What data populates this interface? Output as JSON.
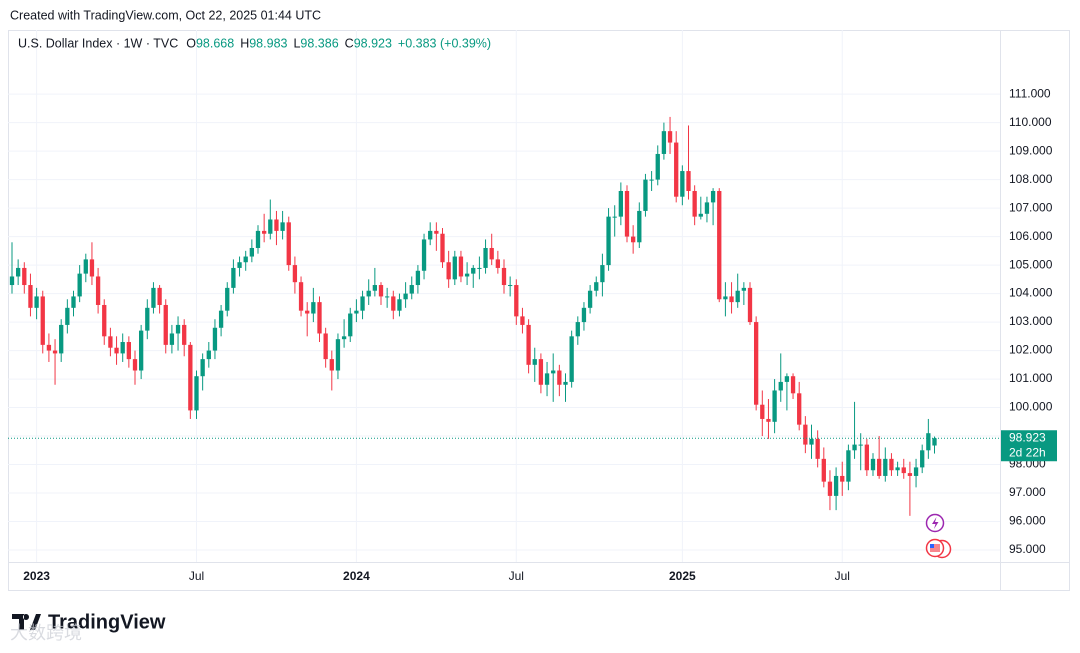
{
  "chart_data": {
    "type": "candlestick",
    "created": "Created with TradingView.com, Oct 22, 2025 01:44 UTC",
    "title": "U.S. Dollar Index · 1W · TVC",
    "ohlc_labels": [
      "O",
      "H",
      "L",
      "C"
    ],
    "change_label": "+0.383 (+0.39%)",
    "countdown": "2d 22h",
    "brand": "TradingView",
    "watermark": "大数跨境",
    "up_color": "#089981",
    "down_color": "#f23645",
    "grid": true,
    "ylim": [
      94.58,
      113.25
    ],
    "yticks": [
      {
        "value": 95,
        "label": "95.000"
      },
      {
        "value": 96,
        "label": "96.000"
      },
      {
        "value": 97,
        "label": "97.000"
      },
      {
        "value": 98,
        "label": "98.000"
      },
      {
        "value": 99,
        "label": "99.000"
      },
      {
        "value": 100,
        "label": "100.000"
      },
      {
        "value": 101,
        "label": "101.000"
      },
      {
        "value": 102,
        "label": "102.000"
      },
      {
        "value": 103,
        "label": "103.000"
      },
      {
        "value": 104,
        "label": "104.000"
      },
      {
        "value": 105,
        "label": "105.000"
      },
      {
        "value": 106,
        "label": "106.000"
      },
      {
        "value": 107,
        "label": "107.000"
      },
      {
        "value": 108,
        "label": "108.000"
      },
      {
        "value": 109,
        "label": "109.000"
      },
      {
        "value": 110,
        "label": "110.000"
      },
      {
        "value": 111,
        "label": "111.000"
      }
    ],
    "xlim": [
      -0.65,
      160.65
    ],
    "xticks": [
      {
        "value": 4,
        "label": "2023"
      },
      {
        "value": 30,
        "label": "Jul"
      },
      {
        "value": 56,
        "label": "2024"
      },
      {
        "value": 82,
        "label": "Jul"
      },
      {
        "value": 109,
        "label": "2025"
      },
      {
        "value": 135,
        "label": "Jul"
      }
    ],
    "ohlc": [
      [
        104.3,
        105.8,
        104.0,
        104.6
      ],
      [
        104.6,
        105.2,
        104.3,
        104.9
      ],
      [
        104.9,
        105.1,
        104.0,
        104.3
      ],
      [
        104.3,
        104.7,
        103.2,
        103.5
      ],
      [
        103.5,
        104.2,
        103.1,
        103.9
      ],
      [
        103.9,
        104.1,
        101.9,
        102.2
      ],
      [
        102.2,
        102.6,
        101.6,
        102.0
      ],
      [
        102.0,
        102.4,
        100.8,
        101.9
      ],
      [
        101.9,
        103.1,
        101.6,
        102.9
      ],
      [
        102.9,
        103.8,
        102.6,
        103.5
      ],
      [
        103.5,
        104.1,
        103.2,
        103.9
      ],
      [
        103.9,
        105.0,
        103.7,
        104.7
      ],
      [
        104.7,
        105.4,
        104.4,
        105.2
      ],
      [
        105.2,
        105.8,
        104.3,
        104.6
      ],
      [
        104.6,
        104.9,
        103.3,
        103.6
      ],
      [
        103.6,
        103.8,
        102.2,
        102.5
      ],
      [
        102.5,
        102.8,
        101.8,
        102.1
      ],
      [
        102.1,
        102.5,
        101.5,
        101.9
      ],
      [
        101.9,
        102.6,
        101.6,
        102.3
      ],
      [
        102.3,
        102.5,
        101.4,
        101.7
      ],
      [
        101.7,
        102.0,
        100.8,
        101.3
      ],
      [
        101.3,
        102.9,
        101.0,
        102.7
      ],
      [
        102.7,
        103.8,
        102.4,
        103.5
      ],
      [
        103.5,
        104.4,
        103.3,
        104.2
      ],
      [
        104.2,
        104.3,
        103.3,
        103.6
      ],
      [
        103.6,
        103.8,
        101.9,
        102.2
      ],
      [
        102.2,
        102.9,
        101.9,
        102.6
      ],
      [
        102.6,
        103.2,
        102.0,
        102.9
      ],
      [
        102.9,
        103.1,
        101.8,
        102.2
      ],
      [
        102.2,
        102.3,
        99.6,
        99.9
      ],
      [
        99.9,
        101.3,
        99.6,
        101.1
      ],
      [
        101.1,
        101.9,
        100.6,
        101.7
      ],
      [
        101.7,
        102.3,
        101.4,
        102.0
      ],
      [
        102.0,
        103.1,
        101.7,
        102.8
      ],
      [
        102.8,
        103.6,
        102.5,
        103.4
      ],
      [
        103.4,
        104.4,
        103.2,
        104.2
      ],
      [
        104.2,
        105.2,
        104.0,
        104.9
      ],
      [
        104.9,
        105.3,
        104.6,
        105.1
      ],
      [
        105.1,
        105.5,
        104.8,
        105.3
      ],
      [
        105.3,
        105.9,
        105.1,
        105.6
      ],
      [
        105.6,
        106.4,
        105.4,
        106.2
      ],
      [
        106.2,
        106.8,
        105.8,
        106.1
      ],
      [
        106.1,
        107.3,
        105.9,
        106.6
      ],
      [
        106.6,
        106.9,
        105.7,
        106.2
      ],
      [
        106.2,
        106.9,
        105.9,
        106.5
      ],
      [
        106.5,
        106.7,
        104.8,
        105.0
      ],
      [
        105.0,
        105.3,
        104.0,
        104.4
      ],
      [
        104.4,
        104.6,
        103.2,
        103.4
      ],
      [
        103.4,
        103.7,
        102.5,
        103.3
      ],
      [
        103.3,
        104.2,
        103.0,
        103.7
      ],
      [
        103.7,
        103.9,
        102.3,
        102.6
      ],
      [
        102.6,
        102.8,
        101.4,
        101.7
      ],
      [
        101.7,
        102.0,
        100.6,
        101.3
      ],
      [
        101.3,
        102.6,
        101.0,
        102.4
      ],
      [
        102.4,
        103.1,
        102.1,
        102.5
      ],
      [
        102.5,
        103.5,
        102.3,
        103.3
      ],
      [
        103.3,
        103.8,
        103.0,
        103.4
      ],
      [
        103.4,
        104.1,
        103.1,
        103.9
      ],
      [
        103.9,
        104.5,
        103.6,
        104.1
      ],
      [
        104.1,
        104.9,
        103.9,
        104.3
      ],
      [
        104.3,
        104.4,
        103.6,
        103.9
      ],
      [
        103.9,
        104.2,
        103.5,
        103.9
      ],
      [
        103.9,
        104.1,
        103.1,
        103.4
      ],
      [
        103.4,
        104.0,
        103.2,
        103.8
      ],
      [
        103.8,
        104.4,
        103.5,
        104.0
      ],
      [
        104.0,
        104.6,
        103.8,
        104.3
      ],
      [
        104.3,
        105.0,
        104.0,
        104.8
      ],
      [
        104.8,
        106.1,
        104.5,
        105.9
      ],
      [
        105.9,
        106.5,
        105.7,
        106.2
      ],
      [
        106.2,
        106.5,
        105.5,
        106.1
      ],
      [
        106.1,
        106.3,
        104.9,
        105.1
      ],
      [
        105.1,
        105.5,
        104.2,
        104.5
      ],
      [
        104.5,
        105.5,
        104.3,
        105.3
      ],
      [
        105.3,
        105.5,
        104.4,
        104.6
      ],
      [
        104.6,
        105.1,
        104.3,
        104.7
      ],
      [
        104.7,
        105.0,
        104.2,
        104.9
      ],
      [
        104.9,
        105.3,
        104.5,
        104.9
      ],
      [
        104.9,
        105.9,
        104.7,
        105.6
      ],
      [
        105.6,
        106.1,
        105.0,
        105.2
      ],
      [
        105.2,
        105.5,
        104.7,
        104.9
      ],
      [
        104.9,
        105.2,
        104.0,
        104.3
      ],
      [
        104.3,
        104.6,
        103.9,
        104.3
      ],
      [
        104.3,
        104.5,
        102.9,
        103.2
      ],
      [
        103.2,
        103.5,
        102.6,
        102.9
      ],
      [
        102.9,
        103.1,
        101.2,
        101.5
      ],
      [
        101.5,
        102.1,
        100.9,
        101.7
      ],
      [
        101.7,
        101.9,
        100.5,
        100.8
      ],
      [
        100.8,
        101.6,
        100.4,
        101.2
      ],
      [
        101.2,
        101.9,
        100.2,
        101.3
      ],
      [
        101.3,
        101.5,
        100.4,
        100.8
      ],
      [
        100.8,
        101.2,
        100.2,
        100.9
      ],
      [
        100.9,
        102.7,
        100.7,
        102.5
      ],
      [
        102.5,
        103.2,
        102.2,
        103.0
      ],
      [
        103.0,
        103.7,
        102.7,
        103.5
      ],
      [
        103.5,
        104.3,
        103.3,
        104.1
      ],
      [
        104.1,
        104.6,
        103.9,
        104.4
      ],
      [
        104.4,
        105.4,
        103.9,
        105.0
      ],
      [
        105.0,
        107.0,
        104.8,
        106.7
      ],
      [
        106.7,
        107.1,
        106.0,
        106.7
      ],
      [
        106.7,
        107.9,
        106.4,
        107.6
      ],
      [
        107.6,
        107.8,
        105.8,
        106.0
      ],
      [
        106.0,
        106.4,
        105.4,
        105.8
      ],
      [
        105.8,
        107.2,
        105.6,
        106.9
      ],
      [
        106.9,
        108.2,
        106.7,
        108.0
      ],
      [
        108.0,
        108.3,
        107.6,
        108.0
      ],
      [
        108.0,
        109.2,
        107.8,
        108.9
      ],
      [
        108.9,
        110.0,
        108.7,
        109.7
      ],
      [
        109.7,
        110.2,
        108.9,
        109.3
      ],
      [
        109.3,
        109.7,
        107.2,
        107.4
      ],
      [
        107.4,
        108.5,
        107.1,
        108.3
      ],
      [
        108.3,
        109.9,
        107.3,
        107.6
      ],
      [
        107.6,
        107.8,
        106.4,
        106.7
      ],
      [
        106.7,
        107.4,
        106.6,
        106.8
      ],
      [
        106.8,
        107.4,
        106.5,
        107.2
      ],
      [
        107.2,
        107.7,
        106.4,
        107.6
      ],
      [
        107.6,
        107.7,
        103.7,
        103.8
      ],
      [
        103.8,
        104.4,
        103.2,
        103.9
      ],
      [
        103.9,
        104.4,
        103.3,
        103.7
      ],
      [
        103.7,
        104.7,
        103.5,
        104.1
      ],
      [
        104.1,
        104.4,
        103.6,
        104.2
      ],
      [
        104.2,
        104.4,
        102.9,
        103.0
      ],
      [
        103.0,
        103.2,
        99.9,
        100.1
      ],
      [
        100.1,
        100.6,
        99.0,
        99.6
      ],
      [
        99.6,
        100.3,
        98.9,
        99.5
      ],
      [
        99.5,
        101.0,
        99.1,
        100.6
      ],
      [
        100.6,
        101.9,
        100.2,
        100.9
      ],
      [
        100.9,
        101.2,
        99.9,
        101.1
      ],
      [
        101.1,
        101.2,
        100.3,
        100.5
      ],
      [
        100.5,
        100.9,
        99.2,
        99.4
      ],
      [
        99.4,
        99.7,
        98.4,
        98.7
      ],
      [
        98.7,
        99.4,
        98.2,
        98.9
      ],
      [
        98.9,
        99.2,
        97.9,
        98.2
      ],
      [
        98.2,
        98.6,
        97.2,
        97.4
      ],
      [
        97.4,
        97.8,
        96.4,
        96.9
      ],
      [
        96.9,
        97.9,
        96.4,
        97.6
      ],
      [
        97.6,
        98.1,
        96.9,
        97.4
      ],
      [
        97.4,
        98.7,
        97.1,
        98.5
      ],
      [
        98.5,
        100.2,
        98.2,
        98.7
      ],
      [
        98.7,
        99.1,
        97.8,
        98.7
      ],
      [
        98.7,
        98.9,
        97.6,
        97.8
      ],
      [
        97.8,
        98.4,
        97.6,
        98.2
      ],
      [
        98.2,
        99.0,
        97.5,
        97.6
      ],
      [
        97.6,
        98.6,
        97.4,
        98.2
      ],
      [
        98.2,
        98.4,
        97.6,
        97.8
      ],
      [
        97.8,
        98.1,
        97.6,
        97.9
      ],
      [
        97.9,
        98.2,
        97.5,
        97.7
      ],
      [
        97.7,
        98.1,
        96.2,
        97.6
      ],
      [
        97.6,
        98.2,
        97.2,
        97.9
      ],
      [
        97.9,
        98.7,
        97.7,
        98.5
      ],
      [
        98.5,
        99.6,
        98.2,
        99.1
      ],
      [
        98.668,
        98.983,
        98.386,
        98.923
      ]
    ]
  }
}
